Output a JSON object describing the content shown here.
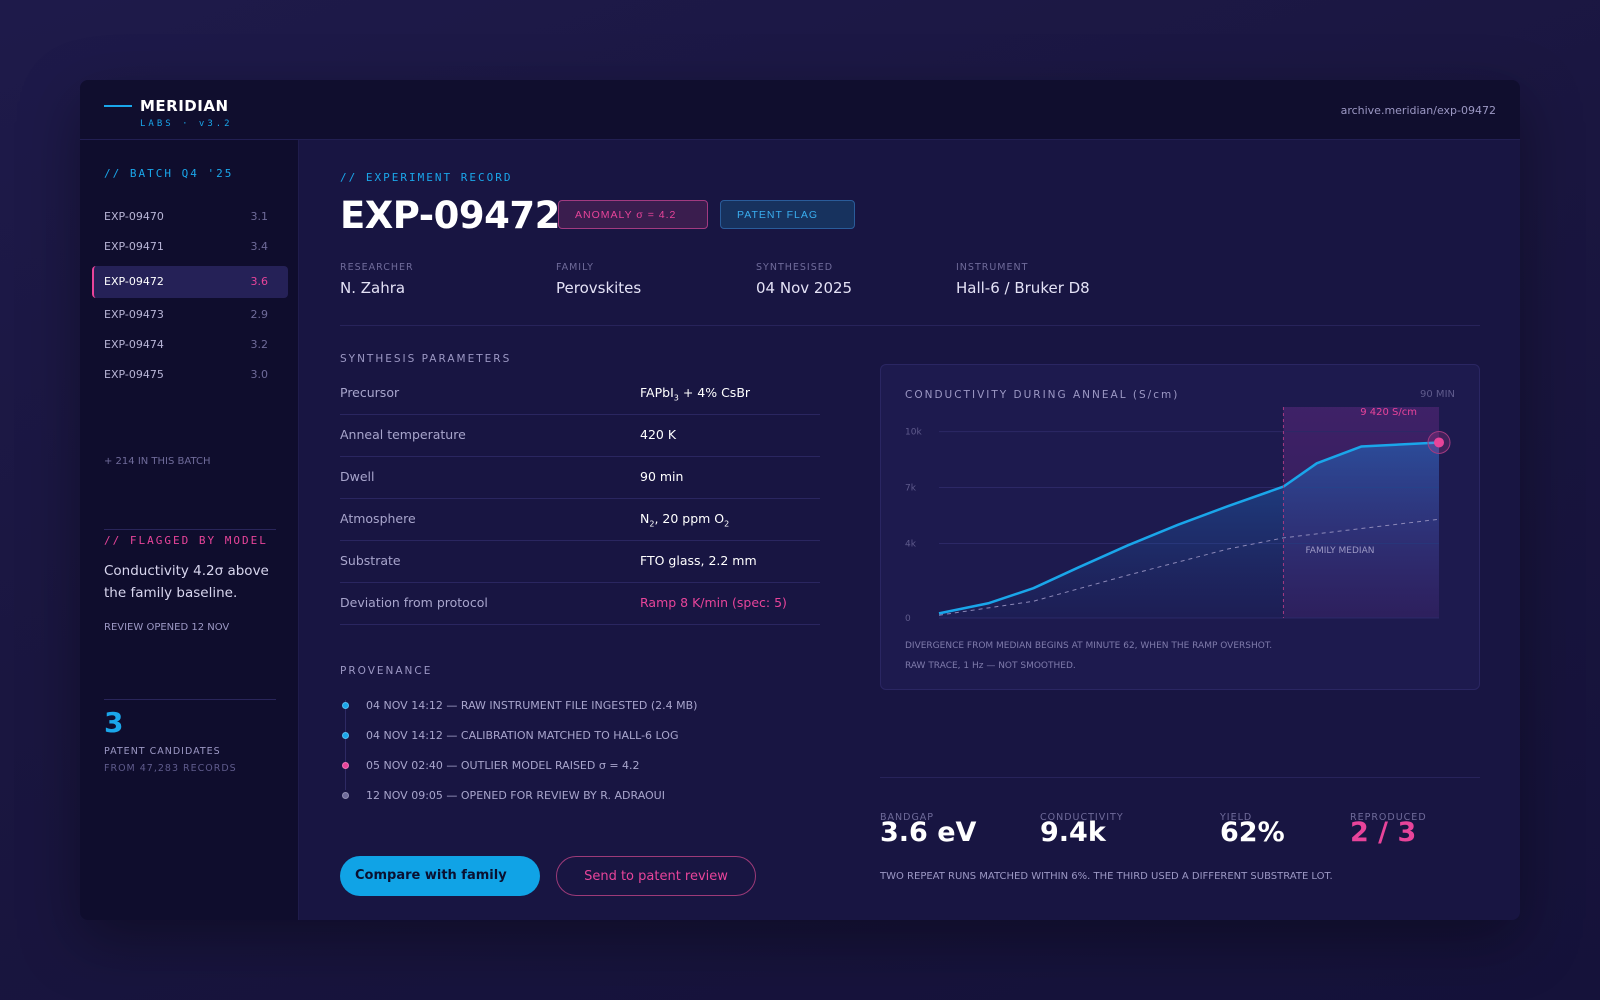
{
  "brand": {
    "name": "MERIDIAN",
    "sub": "LABS · v3.2"
  },
  "header": {
    "path": "archive.meridian/exp-09472"
  },
  "sidebar": {
    "batch_heading": "// BATCH Q4 '25",
    "items": [
      {
        "id": "EXP-09470",
        "value": "3.1"
      },
      {
        "id": "EXP-09471",
        "value": "3.4"
      },
      {
        "id": "EXP-09472",
        "value": "3.6"
      },
      {
        "id": "EXP-09473",
        "value": "2.9"
      },
      {
        "id": "EXP-09474",
        "value": "3.2"
      },
      {
        "id": "EXP-09475",
        "value": "3.0"
      }
    ],
    "more": "+ 214 IN THIS BATCH",
    "flag_heading": "// FLAGGED BY MODEL",
    "flag_text": "Conductivity 4.2σ above the family baseline.",
    "review_opened": "REVIEW OPENED 12 NOV",
    "candidates_count": "3",
    "candidates_label": "PATENT CANDIDATES",
    "candidates_sub": "FROM 47,283 RECORDS"
  },
  "record": {
    "eyebrow": "// EXPERIMENT RECORD",
    "title": "EXP-09472",
    "badge_anomaly": "ANOMALY σ = 4.2",
    "badge_patent": "PATENT FLAG",
    "meta": [
      {
        "label": "RESEARCHER",
        "value": "N. Zahra"
      },
      {
        "label": "FAMILY",
        "value": "Perovskites"
      },
      {
        "label": "SYNTHESISED",
        "value": "04 Nov 2025"
      },
      {
        "label": "INSTRUMENT",
        "value": "Hall-6 / Bruker D8"
      }
    ]
  },
  "params": {
    "heading": "SYNTHESIS PARAMETERS",
    "rows": [
      {
        "key": "Precursor",
        "value_pre": "FAPbI",
        "value_sub": "3",
        "value_post": " + 4% CsBr"
      },
      {
        "key": "Anneal temperature",
        "value": "420 K"
      },
      {
        "key": "Dwell",
        "value": "90 min"
      },
      {
        "key": "Atmosphere",
        "value_pre": "N",
        "value_sub": "2",
        "value_mid": ", 20 ppm O",
        "value_sub2": "2"
      },
      {
        "key": "Substrate",
        "value": "FTO glass, 2.2 mm"
      },
      {
        "key": "Deviation from protocol",
        "value": "Ramp 8 K/min (spec: 5)"
      }
    ]
  },
  "provenance": {
    "heading": "PROVENANCE",
    "items": [
      {
        "text": "04 NOV 14:12 — RAW INSTRUMENT FILE INGESTED (2.4 MB)",
        "color": "#1aa6ea"
      },
      {
        "text": "04 NOV 14:12 — CALIBRATION MATCHED TO HALL-6 LOG",
        "color": "#1aa6ea"
      },
      {
        "text": "05 NOV 02:40 — OUTLIER MODEL RAISED σ = 4.2",
        "color": "#e8449a"
      },
      {
        "text": "12 NOV 09:05 — OPENED FOR REVIEW BY R. ADRAOUI",
        "color": "#6f6b9a"
      }
    ]
  },
  "actions": {
    "compare": "Compare with family",
    "send": "Send to patent review"
  },
  "chart": {
    "title": "CONDUCTIVITY DURING ANNEAL (S/cm)",
    "range_label": "90 MIN",
    "peak_label": "9 420 S/cm",
    "median_label": "FAMILY MEDIAN",
    "note1": "DIVERGENCE FROM MEDIAN BEGINS AT MINUTE 62, WHEN THE RAMP OVERSHOT.",
    "note2": "RAW TRACE, 1 Hz — NOT SMOOTHED."
  },
  "chart_data": {
    "type": "area",
    "title": "CONDUCTIVITY DURING ANNEAL (S/cm)",
    "xlabel": "",
    "ylabel": "",
    "xlim": [
      0,
      90
    ],
    "ylim": [
      0,
      11000
    ],
    "yticks": [
      0,
      4000,
      7000,
      10000
    ],
    "ytick_labels": [
      "0",
      "4k",
      "7k",
      "10k"
    ],
    "highlight_from": 62,
    "series": [
      {
        "values_x": [
          0,
          9,
          17,
          25,
          34,
          43,
          52,
          62,
          68,
          76,
          90
        ],
        "values_y": [
          250,
          800,
          1600,
          2700,
          3900,
          5000,
          6000,
          7050,
          8300,
          9200,
          9420
        ]
      },
      {
        "name": "FAMILY MEDIAN",
        "values_x": [
          0,
          17,
          34,
          52,
          62,
          76,
          90
        ],
        "values_y": [
          150,
          900,
          2300,
          3700,
          4300,
          4800,
          5300
        ]
      }
    ],
    "peak": {
      "x": 90,
      "y": 9420,
      "label": "9 420 S/cm"
    }
  },
  "stats": [
    {
      "label": "BANDGAP",
      "value": "3.6 eV"
    },
    {
      "label": "CONDUCTIVITY",
      "value": "9.4k"
    },
    {
      "label": "YIELD",
      "value": "62%"
    },
    {
      "label": "REPRODUCED",
      "value": "2 / 3"
    }
  ],
  "stats_note": "TWO REPEAT RUNS MATCHED WITHIN 6%. THE THIRD USED A DIFFERENT SUBSTRATE LOT.",
  "colors": {
    "accent": "#1aa6ea",
    "alert": "#e8449a",
    "panel": "#181542"
  }
}
